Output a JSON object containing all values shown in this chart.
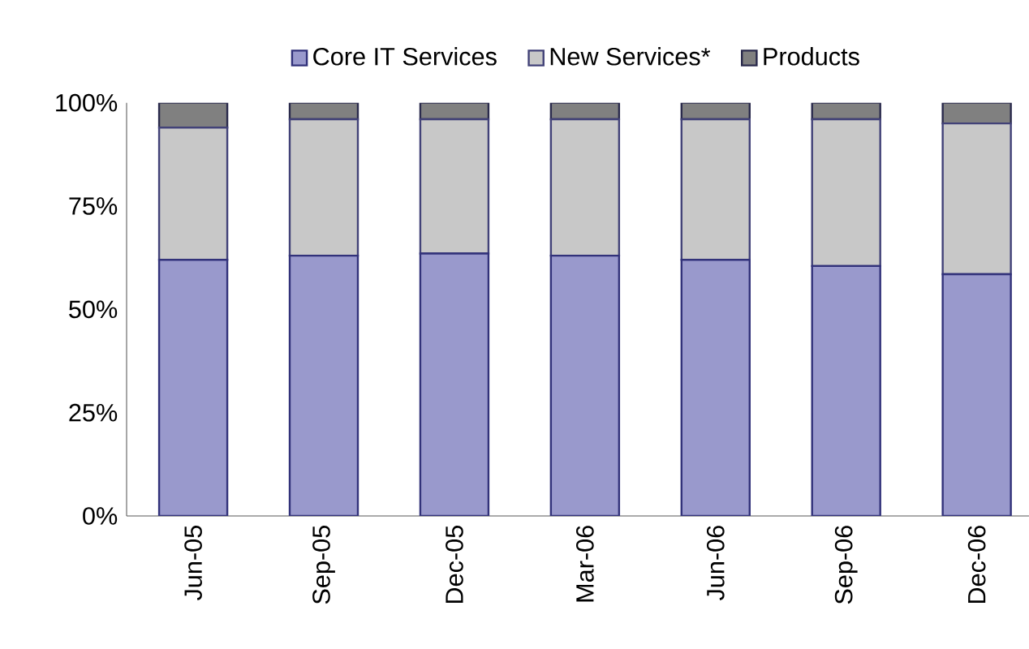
{
  "chart_data": {
    "type": "bar",
    "stacked": true,
    "categories": [
      "Jun-05",
      "Sep-05",
      "Dec-05",
      "Mar-06",
      "Jun-06",
      "Sep-06",
      "Dec-06"
    ],
    "series": [
      {
        "name": "Core IT Services",
        "color": "#9999cc",
        "values": [
          62,
          63,
          63.5,
          63,
          62,
          60.5,
          58.5
        ]
      },
      {
        "name": "New  Services*",
        "color": "#c8c8c8",
        "values": [
          32,
          33,
          32.5,
          33,
          34,
          35.5,
          36.5
        ]
      },
      {
        "name": "Products",
        "color": "#808080",
        "values": [
          6,
          4,
          4,
          4,
          4,
          4,
          5
        ]
      }
    ],
    "ylim": [
      0,
      100
    ],
    "yticks": [
      {
        "value": 0,
        "label": "0%"
      },
      {
        "value": 25,
        "label": "25%"
      },
      {
        "value": 50,
        "label": "50%"
      },
      {
        "value": 75,
        "label": "75%"
      },
      {
        "value": 100,
        "label": "100%"
      }
    ],
    "legend": "top",
    "grid": false
  }
}
